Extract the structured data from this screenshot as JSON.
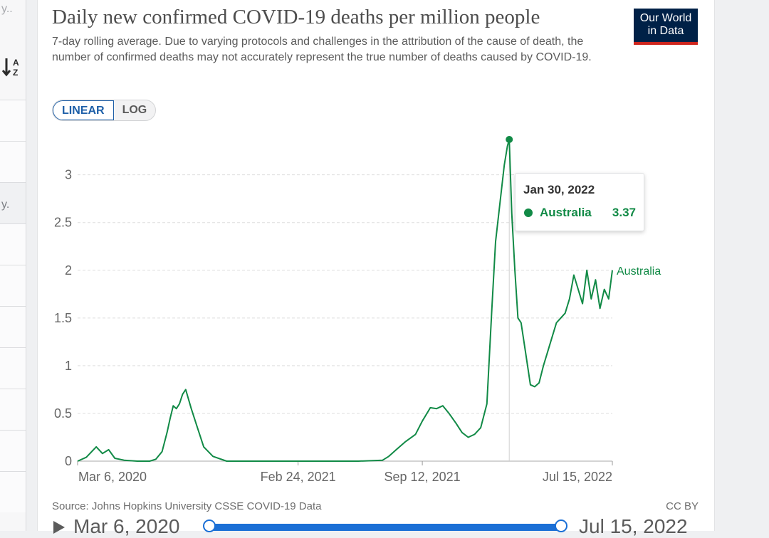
{
  "sidebar": {
    "top_text": "y..",
    "sort_icon": "sort-alpha-icon",
    "row_text": "y."
  },
  "header": {
    "title": "Daily new confirmed COVID-19 deaths per million people",
    "subtitle": "7-day rolling average. Due to varying protocols and challenges in the attribution of the cause of death, the number of confirmed deaths may not accurately represent the true number of deaths caused by COVID-19.",
    "logo_line1": "Our World",
    "logo_line2": "in Data"
  },
  "scale_toggle": {
    "linear": "LINEAR",
    "log": "LOG",
    "active": "LINEAR"
  },
  "footer": {
    "source": "Source: Johns Hopkins University CSSE COVID-19 Data",
    "license": "CC BY"
  },
  "timeline": {
    "start": "Mar 6, 2020",
    "end": "Jul 15, 2022"
  },
  "tooltip": {
    "date": "Jan 30, 2022",
    "entity": "Australia",
    "value": "3.37"
  },
  "colors": {
    "series": "#118a46",
    "accent": "#1a6fd6",
    "logo_bg": "#002147",
    "logo_bar": "#ce261e"
  },
  "chart_data": {
    "type": "line",
    "title": "Daily new confirmed COVID-19 deaths per million people",
    "xlabel": "",
    "ylabel": "",
    "ylim": [
      0,
      3.37
    ],
    "yticks": [
      0,
      0.5,
      1,
      1.5,
      2,
      2.5,
      3
    ],
    "ytick_labels": [
      "0",
      "0.5",
      "1",
      "1.5",
      "2",
      "2.5",
      "3"
    ],
    "xlim": [
      "2020-03-06",
      "2022-07-15"
    ],
    "xticks": [
      "2020-03-06",
      "2021-02-24",
      "2021-09-12",
      "2022-07-15"
    ],
    "xtick_labels": [
      "Mar 6, 2020",
      "Feb 24, 2021",
      "Sep 12, 2021",
      "Jul 15, 2022"
    ],
    "grid": true,
    "series": [
      {
        "name": "Australia",
        "x": [
          "2020-03-06",
          "2020-03-20",
          "2020-04-05",
          "2020-04-15",
          "2020-04-25",
          "2020-05-05",
          "2020-05-20",
          "2020-06-10",
          "2020-06-30",
          "2020-07-10",
          "2020-07-20",
          "2020-07-28",
          "2020-08-02",
          "2020-08-07",
          "2020-08-12",
          "2020-08-17",
          "2020-08-22",
          "2020-08-27",
          "2020-09-05",
          "2020-09-15",
          "2020-09-25",
          "2020-10-10",
          "2020-11-01",
          "2021-02-24",
          "2021-06-01",
          "2021-07-10",
          "2021-07-20",
          "2021-08-01",
          "2021-08-15",
          "2021-09-01",
          "2021-09-12",
          "2021-09-25",
          "2021-10-05",
          "2021-10-15",
          "2021-10-25",
          "2021-11-05",
          "2021-11-15",
          "2021-11-25",
          "2021-12-05",
          "2021-12-15",
          "2021-12-25",
          "2022-01-02",
          "2022-01-08",
          "2022-01-15",
          "2022-01-22",
          "2022-01-27",
          "2022-01-30",
          "2022-02-03",
          "2022-02-08",
          "2022-02-13",
          "2022-02-18",
          "2022-02-25",
          "2022-03-05",
          "2022-03-12",
          "2022-03-19",
          "2022-03-26",
          "2022-04-02",
          "2022-04-09",
          "2022-04-16",
          "2022-04-23",
          "2022-04-30",
          "2022-05-07",
          "2022-05-14",
          "2022-05-21",
          "2022-05-28",
          "2022-06-04",
          "2022-06-11",
          "2022-06-18",
          "2022-06-25",
          "2022-07-02",
          "2022-07-09",
          "2022-07-15"
        ],
        "y": [
          0,
          0.04,
          0.15,
          0.08,
          0.12,
          0.03,
          0.01,
          0,
          0,
          0.02,
          0.1,
          0.3,
          0.45,
          0.58,
          0.55,
          0.6,
          0.7,
          0.75,
          0.55,
          0.35,
          0.15,
          0.05,
          0,
          0,
          0,
          0.01,
          0.05,
          0.12,
          0.2,
          0.28,
          0.42,
          0.56,
          0.55,
          0.58,
          0.5,
          0.4,
          0.3,
          0.25,
          0.28,
          0.35,
          0.6,
          1.6,
          2.3,
          2.7,
          3.1,
          3.3,
          3.37,
          2.6,
          2.0,
          1.5,
          1.45,
          1.15,
          0.8,
          0.78,
          0.82,
          1.0,
          1.15,
          1.3,
          1.45,
          1.5,
          1.55,
          1.7,
          1.95,
          1.8,
          1.65,
          2.0,
          1.7,
          1.9,
          1.6,
          1.8,
          1.7,
          2.0
        ]
      }
    ],
    "highlight": {
      "x": "2022-01-30",
      "y": 3.37
    },
    "series_label_position": "right-end"
  }
}
